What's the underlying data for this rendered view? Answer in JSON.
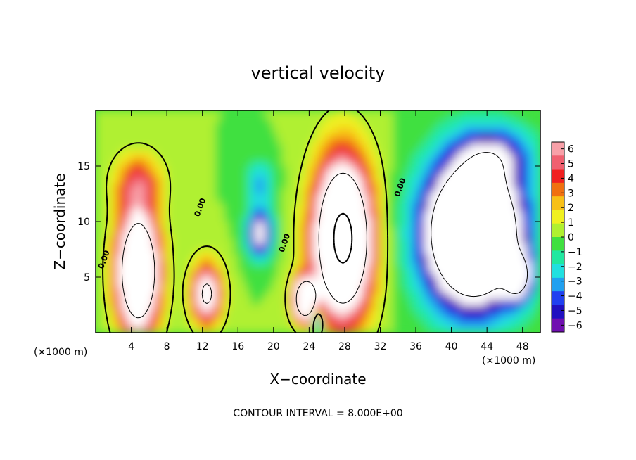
{
  "chart_data": {
    "type": "heatmap",
    "title": "vertical velocity",
    "xlabel": "X−coordinate",
    "ylabel": "Z−coordinate",
    "x_unit_left": "(×1000 m)",
    "x_unit_right": "(×1000 m)",
    "footnote": "CONTOUR INTERVAL = 8.000E+00",
    "xlim": [
      0,
      50
    ],
    "ylim": [
      0,
      20
    ],
    "x_ticks": [
      4,
      8,
      12,
      16,
      20,
      24,
      28,
      32,
      36,
      40,
      44,
      48
    ],
    "y_ticks": [
      5,
      10,
      15
    ],
    "colorbar": {
      "ticks": [
        "6",
        "5",
        "4",
        "3",
        "2",
        "1",
        "0",
        "−1",
        "−2",
        "−3",
        "−4",
        "−5",
        "−6"
      ],
      "range": [
        -6,
        6
      ],
      "colors": [
        "#f8a0a8",
        "#f06070",
        "#f02020",
        "#f07010",
        "#f8c018",
        "#f0f020",
        "#b0f030",
        "#40e040",
        "#20e8a0",
        "#20e0e0",
        "#20a0f0",
        "#2040f0",
        "#2010c0",
        "#7010b0"
      ]
    },
    "contour_labels": [
      "0.00",
      "0.00",
      "0.00",
      "0.00"
    ],
    "features": [
      {
        "x": 4.8,
        "z": 5.5,
        "value": 16,
        "sx": 2.2,
        "sz": 5.0
      },
      {
        "x": 4.8,
        "z": 13.5,
        "value": 4,
        "sx": 2.5,
        "sz": 2.5
      },
      {
        "x": 12.5,
        "z": 3.5,
        "value": 9,
        "sx": 1.6,
        "sz": 2.6
      },
      {
        "x": 18.5,
        "z": 9.0,
        "value": -8,
        "sx": 1.3,
        "sz": 2.0
      },
      {
        "x": 18.5,
        "z": 13.5,
        "value": -3,
        "sx": 1.5,
        "sz": 2.0
      },
      {
        "x": 23.5,
        "z": 3.0,
        "value": 14,
        "sx": 1.2,
        "sz": 1.8
      },
      {
        "x": 27.8,
        "z": 8.5,
        "value": 18,
        "sx": 3.0,
        "sz": 6.5
      },
      {
        "x": 25.0,
        "z": 1.0,
        "value": -6,
        "sx": 0.5,
        "sz": 1.0
      },
      {
        "x": 42.5,
        "z": 9.0,
        "value": -20,
        "sx": 5.0,
        "sz": 6.0
      },
      {
        "x": 45.0,
        "z": 16.0,
        "value": -4,
        "sx": 4.0,
        "sz": 2.5
      },
      {
        "x": 47.5,
        "z": 5.0,
        "value": -8,
        "sx": 1.5,
        "sz": 2.0
      }
    ]
  }
}
